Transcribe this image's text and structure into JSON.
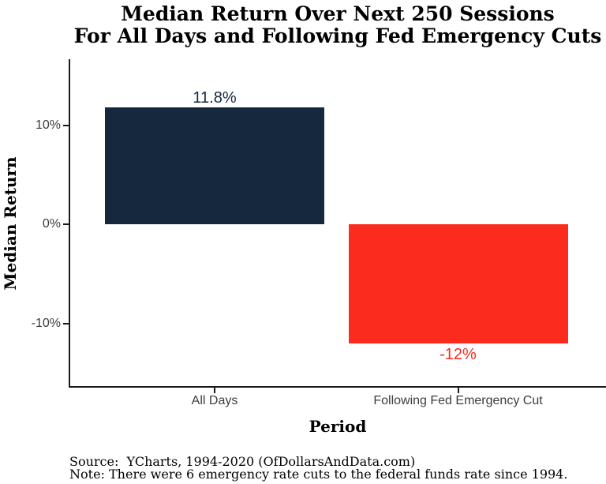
{
  "title": {
    "line1": "Median Return Over Next 250 Sessions",
    "line2": "For All Days and Following Fed Emergency Cuts"
  },
  "chart_data": {
    "type": "bar",
    "categories": [
      "All Days",
      "Following Fed Emergency Cut"
    ],
    "values": [
      11.8,
      -12
    ],
    "value_labels": [
      "11.8%",
      "-12%"
    ],
    "bar_colors": [
      "#16283E",
      "#FB2C1D"
    ],
    "value_label_colors": [
      "#16283E",
      "#FB2C1D"
    ],
    "title": "Median Return Over Next 250 Sessions For All Days and Following Fed Emergency Cuts",
    "xlabel": "Period",
    "ylabel": "Median Return",
    "ytick_labels": [
      "10%",
      "0%",
      "-10%"
    ],
    "ytick_values": [
      10,
      0,
      -10
    ],
    "ylim": [
      -16.4,
      16.7
    ],
    "grid": false,
    "legend": "none"
  },
  "footer": {
    "source_line": "Source:  YCharts, 1994-2020 (OfDollarsAndData.com)",
    "note_line": "Note: There were 6 emergency rate cuts to the federal funds rate since 1994."
  }
}
